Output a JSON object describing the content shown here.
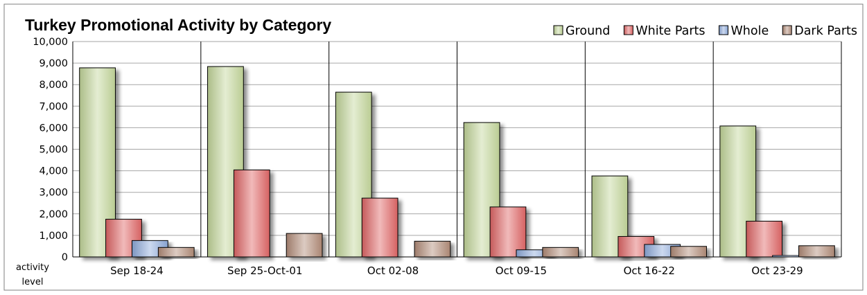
{
  "chart_data": {
    "type": "bar",
    "title": "Turkey Promotional Activity by Category",
    "ylabel": "activity level",
    "ylabel_lines": [
      "activity",
      "level"
    ],
    "ylim": [
      0,
      10000
    ],
    "yticks": [
      0,
      1000,
      2000,
      3000,
      4000,
      5000,
      6000,
      7000,
      8000,
      9000,
      10000
    ],
    "ytick_labels": [
      "0",
      "1,000",
      "2,000",
      "3,000",
      "4,000",
      "5,000",
      "6,000",
      "7,000",
      "8,000",
      "9,000",
      "10,000"
    ],
    "categories": [
      "Sep 18-24",
      "Sep 25-Oct-01",
      "Oct 02-08",
      "Oct 09-15",
      "Oct 16-22",
      "Oct 23-29"
    ],
    "legend_position": "top-right",
    "grid": true,
    "series": [
      {
        "name": "Ground",
        "color": "#c4d79b",
        "values": [
          8780,
          8840,
          7650,
          6240,
          3760,
          6080
        ]
      },
      {
        "name": "White Parts",
        "color": "#e06666",
        "values": [
          1750,
          4040,
          2730,
          2320,
          950,
          1660
        ]
      },
      {
        "name": "Whole",
        "color": "#8eaadb",
        "values": [
          760,
          0,
          0,
          330,
          580,
          70
        ]
      },
      {
        "name": "Dark Parts",
        "color": "#b28c78",
        "values": [
          440,
          1090,
          730,
          440,
          490,
          520
        ]
      }
    ]
  }
}
